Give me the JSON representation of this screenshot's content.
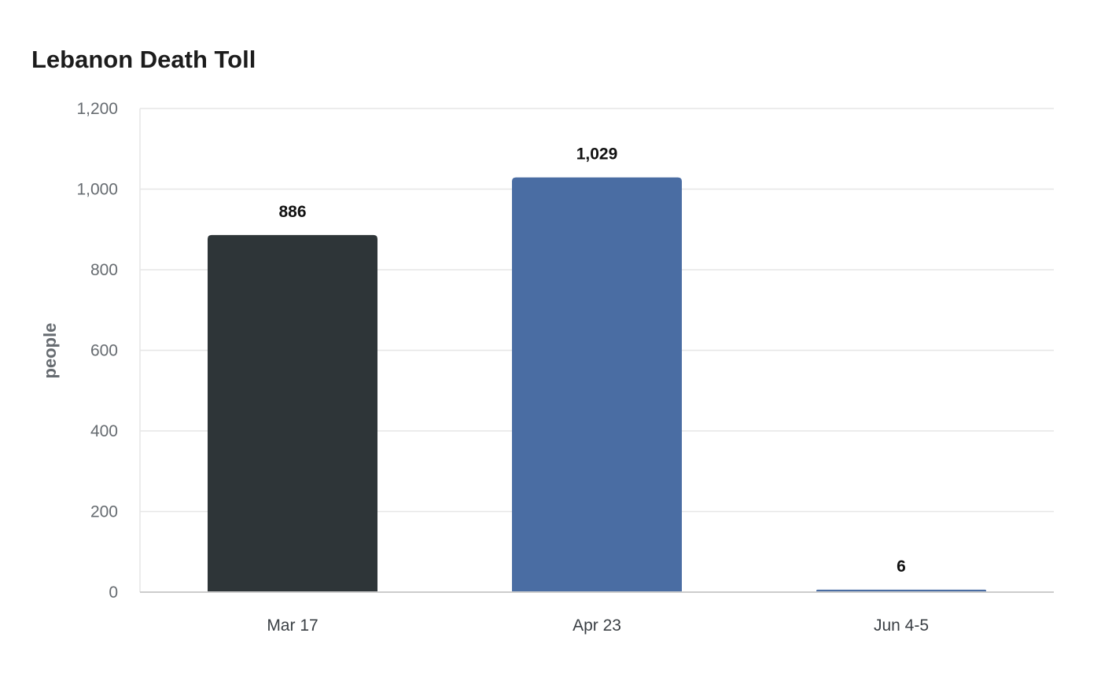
{
  "chart_data": {
    "type": "bar",
    "title": "Lebanon Death Toll",
    "xlabel": "",
    "ylabel": "people",
    "categories": [
      "Mar 17",
      "Apr 23",
      "Jun 4-5"
    ],
    "values": [
      886,
      1029,
      6
    ],
    "value_labels": [
      "886",
      "1,029",
      "6"
    ],
    "bar_colors": [
      "#2e3538",
      "#4a6da3",
      "#4a6da3"
    ],
    "ylim": [
      0,
      1200
    ],
    "yticks": [
      0,
      200,
      400,
      600,
      800,
      1000,
      1200
    ],
    "ytick_labels": [
      "0",
      "200",
      "400",
      "600",
      "800",
      "1,000",
      "1,200"
    ],
    "grid": true,
    "legend": "none"
  },
  "colors": {
    "grid": "#e6e6e6",
    "axis": "#cccccc",
    "tick_text": "#666b70",
    "category_text": "#3a3f44",
    "value_text": "#111111"
  }
}
